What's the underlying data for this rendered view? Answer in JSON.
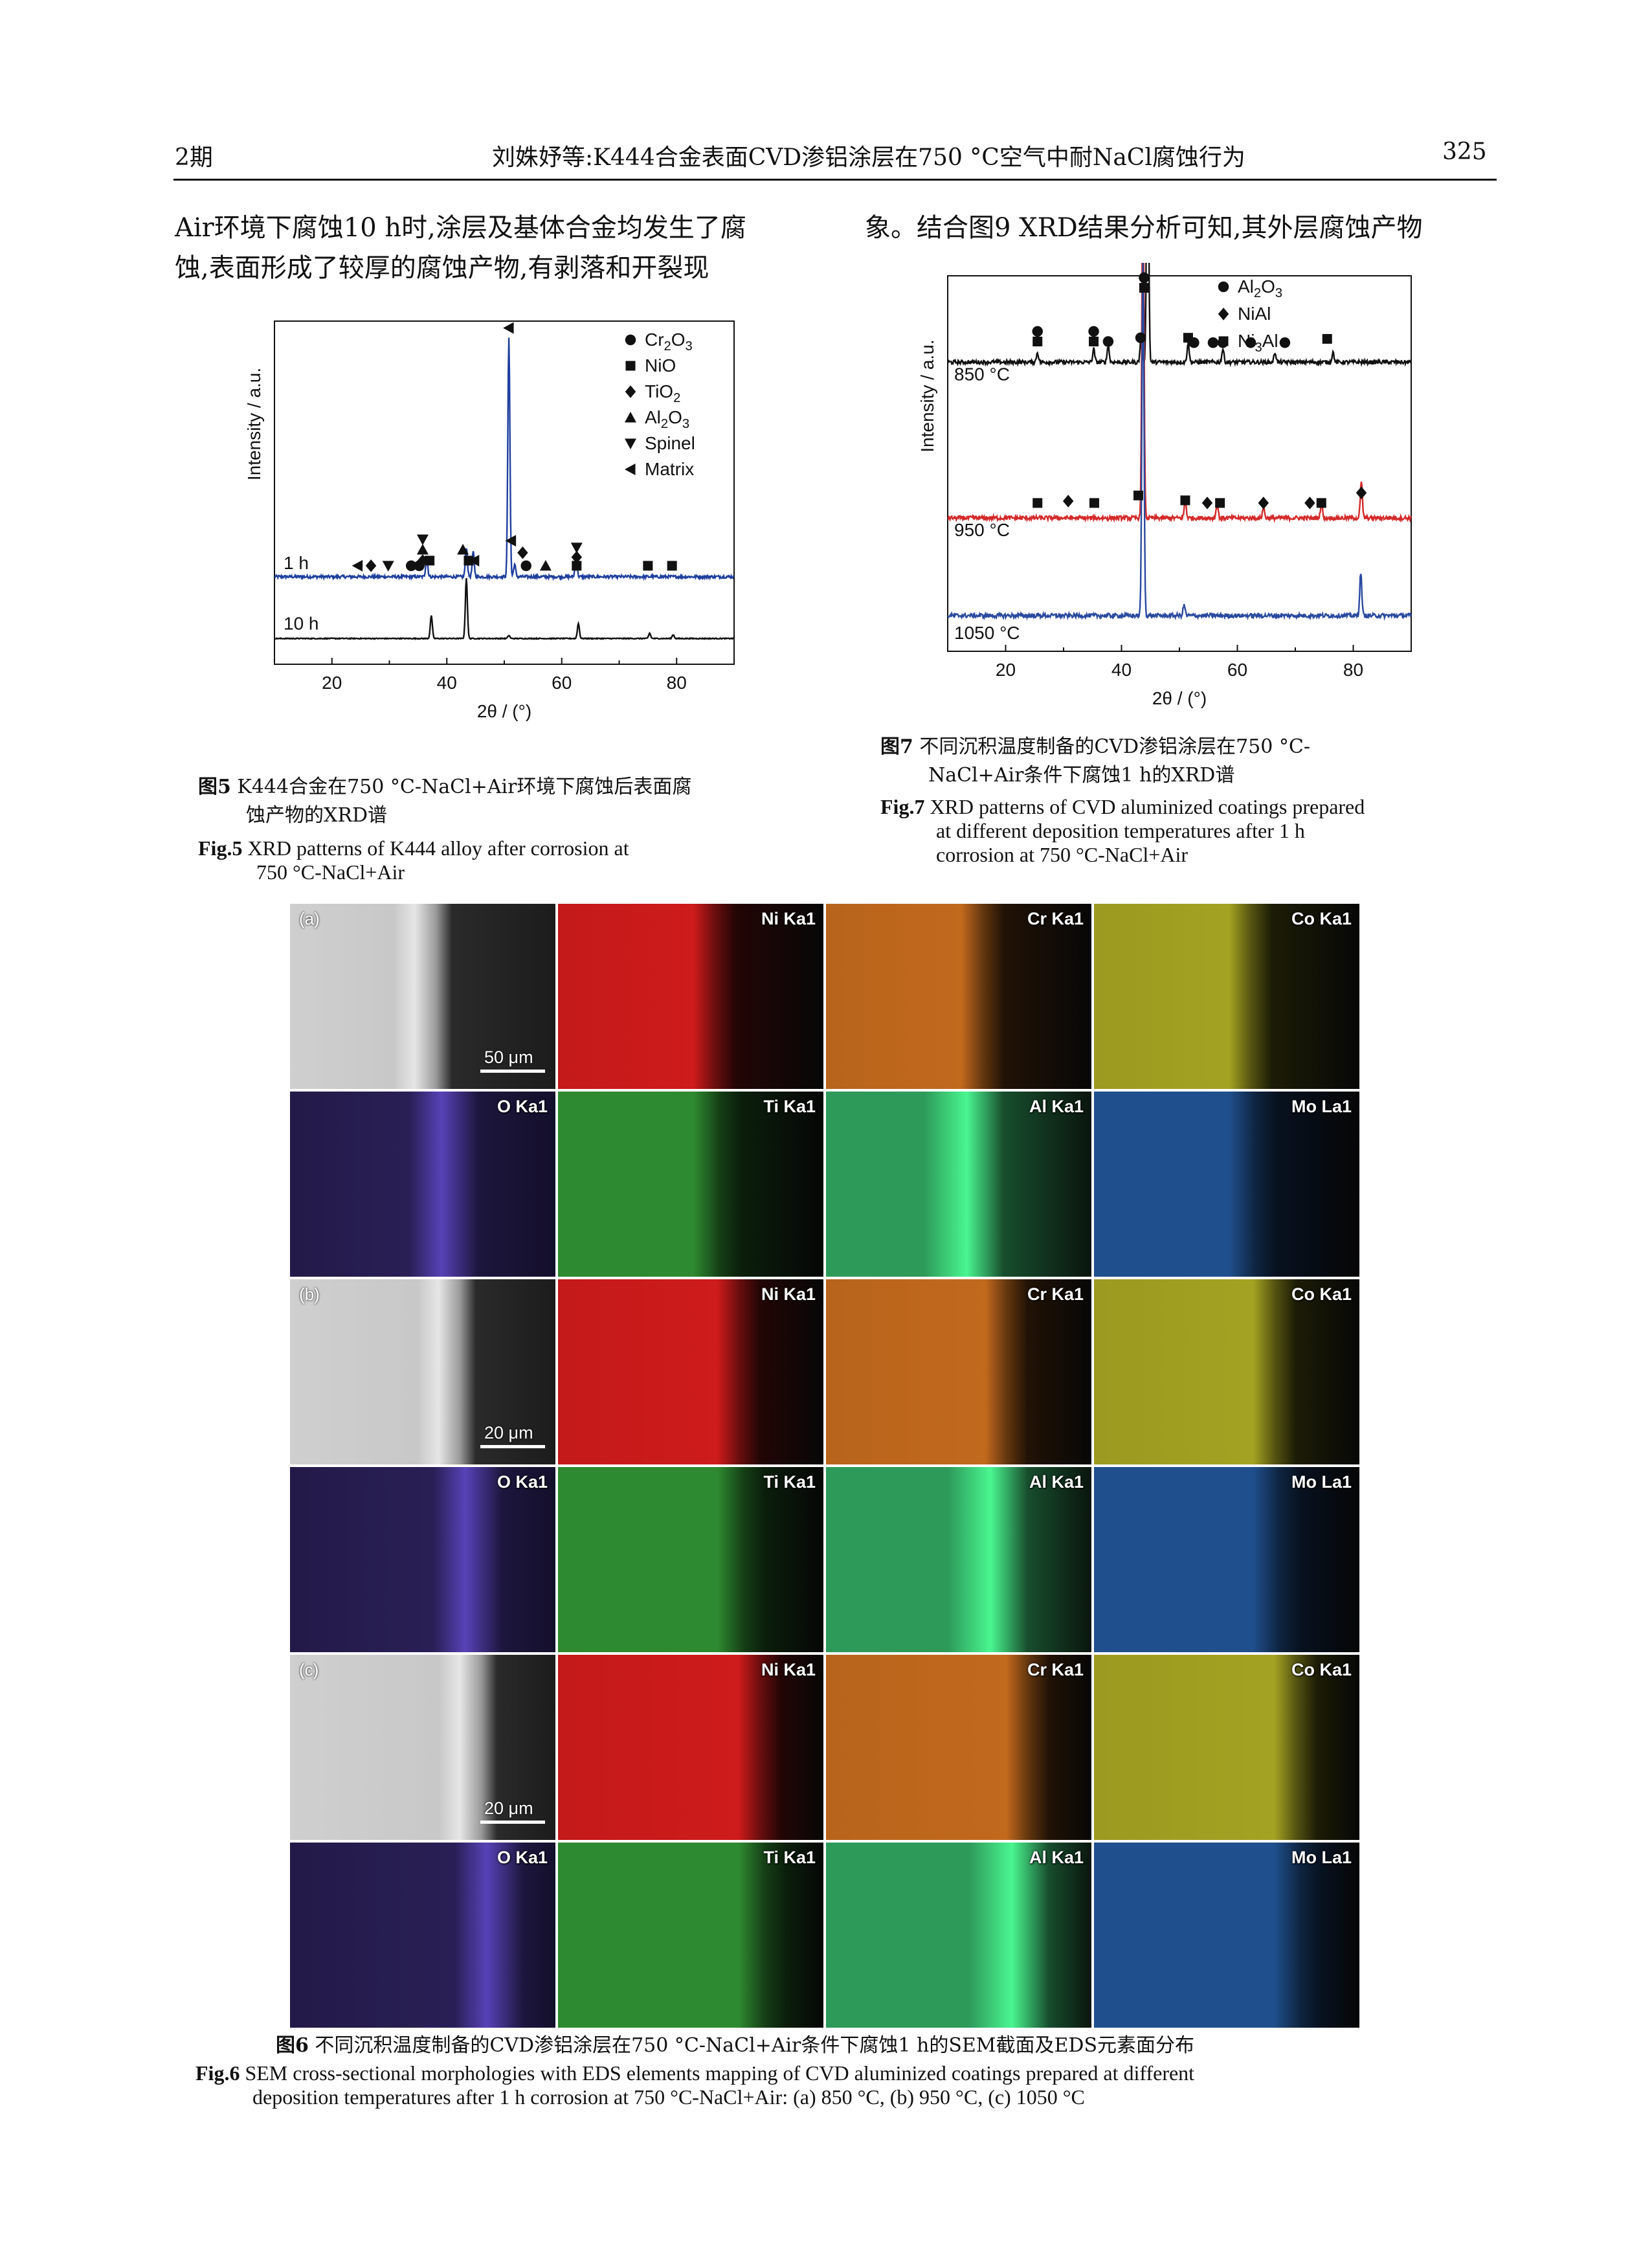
{
  "header": {
    "issue": "2期",
    "title": "刘姝妤等:K444合金表面CVD渗铝涂层在750 °C空气中耐NaCl腐蚀行为",
    "page_number": "325"
  },
  "body": {
    "left_line1": "Air环境下腐蚀10 h时,涂层及基体合金均发生了腐",
    "left_line2": "蚀,表面形成了较厚的腐蚀产物,有剥落和开裂现",
    "right_line1": "象。结合图9 XRD结果分析可知,其外层腐蚀产物"
  },
  "fig5": {
    "caption_cn_label": "图5",
    "caption_cn_line1": "K444合金在750 °C-NaCl+Air环境下腐蚀后表面腐",
    "caption_cn_line2": "蚀产物的XRD谱",
    "caption_en_label": "Fig.5",
    "caption_en_line1": "XRD patterns of K444 alloy after corrosion at",
    "caption_en_line2": "750 °C-NaCl+Air"
  },
  "fig7": {
    "caption_cn_label": "图7",
    "caption_cn_line1": "不同沉积温度制备的CVD渗铝涂层在750 °C-",
    "caption_cn_line2": "NaCl+Air条件下腐蚀1 h的XRD谱",
    "caption_en_label": "Fig.7",
    "caption_en_line1": "XRD patterns of CVD aluminized coatings prepared",
    "caption_en_line2": "at different deposition temperatures after 1 h",
    "caption_en_line3": "corrosion at 750 °C-NaCl+Air"
  },
  "fig6": {
    "caption_cn_label": "图6",
    "caption_cn": "不同沉积温度制备的CVD渗铝涂层在750 °C-NaCl+Air条件下腐蚀1 h的SEM截面及EDS元素面分布",
    "caption_en_label": "Fig.6",
    "caption_en_line1": "SEM cross-sectional morphologies with EDS elements mapping of CVD aluminized coatings prepared at different",
    "caption_en_line2": "deposition temperatures after 1 h corrosion at 750 °C-NaCl+Air: (a) 850 °C, (b) 950 °C, (c) 1050 °C",
    "panels": [
      {
        "tag": "(a)",
        "scale": "50 μm",
        "maps_row1": [
          "Ni Ka1",
          "Cr Ka1",
          "Co Ka1"
        ],
        "maps_row2": [
          "O Ka1",
          "Ti Ka1",
          "Al Ka1",
          "Mo La1"
        ]
      },
      {
        "tag": "(b)",
        "scale": "20 μm",
        "maps_row1": [
          "Ni Ka1",
          "Cr Ka1",
          "Co Ka1"
        ],
        "maps_row2": [
          "O Ka1",
          "Ti Ka1",
          "Al Ka1",
          "Mo La1"
        ]
      },
      {
        "tag": "(c)",
        "scale": "20 μm",
        "maps_row1": [
          "Ni Ka1",
          "Cr Ka1",
          "Co Ka1"
        ],
        "maps_row2": [
          "O Ka1",
          "Ti Ka1",
          "Al Ka1",
          "Mo La1"
        ]
      }
    ],
    "map_colors": {
      "Ni": "#c41a1a",
      "Cr": "#b8641c",
      "Co": "#9c9a20",
      "O": "#3a2c7a",
      "Ti": "#2e8a30",
      "Al": "#2e9a5a",
      "Mo": "#1f4f8c"
    }
  },
  "chart_data": [
    {
      "id": "fig5",
      "type": "line",
      "xlabel": "2θ / (°)",
      "ylabel": "Intensity / a.u.",
      "xlim": [
        10,
        90
      ],
      "xticks": [
        20,
        40,
        60,
        80
      ],
      "legend_position": "top-right",
      "legend": [
        "Cr2O3",
        "NiO",
        "TiO2",
        "Al2O3",
        "Spinel",
        "Matrix"
      ],
      "series": [
        {
          "name": "1 h",
          "color": "#1f3f9f",
          "peaks": [
            [
              36.5,
              0.08
            ],
            [
              43.4,
              0.12
            ],
            [
              44.6,
              0.1
            ],
            [
              50.8,
              0.97
            ],
            [
              51.8,
              0.05
            ],
            [
              62.5,
              0.08
            ]
          ]
        },
        {
          "name": "10 h",
          "color": "#111111",
          "peaks": [
            [
              37.3,
              0.3
            ],
            [
              43.4,
              0.8
            ],
            [
              50.8,
              0.04
            ],
            [
              62.9,
              0.2
            ],
            [
              75.3,
              0.07
            ],
            [
              79.4,
              0.05
            ]
          ]
        }
      ]
    },
    {
      "id": "fig7",
      "type": "line",
      "xlabel": "2θ / (°)",
      "ylabel": "Intensity / a.u.",
      "xlim": [
        10,
        90
      ],
      "xticks": [
        20,
        40,
        60,
        80
      ],
      "legend_position": "top-right",
      "legend": [
        "Al2O3",
        "NiAl",
        "Ni3Al"
      ],
      "series": [
        {
          "name": "850 °C",
          "color": "#111111",
          "peaks": [
            [
              25.5,
              0.03
            ],
            [
              35.2,
              0.04
            ],
            [
              37.7,
              0.05
            ],
            [
              43.4,
              0.08
            ],
            [
              44.5,
              0.85
            ],
            [
              51.5,
              0.06
            ],
            [
              57.5,
              0.04
            ],
            [
              66.5,
              0.03
            ],
            [
              76.5,
              0.03
            ]
          ]
        },
        {
          "name": "950 °C",
          "color": "#d42a2a",
          "peaks": [
            [
              43.7,
              1.0
            ],
            [
              51.0,
              0.05
            ],
            [
              56.5,
              0.04
            ],
            [
              64.5,
              0.03
            ],
            [
              74.5,
              0.04
            ],
            [
              81.4,
              0.1
            ]
          ]
        },
        {
          "name": "1050 °C",
          "color": "#2a4aa0",
          "peaks": [
            [
              43.7,
              1.0
            ],
            [
              50.8,
              0.03
            ],
            [
              81.3,
              0.12
            ]
          ]
        }
      ]
    }
  ]
}
